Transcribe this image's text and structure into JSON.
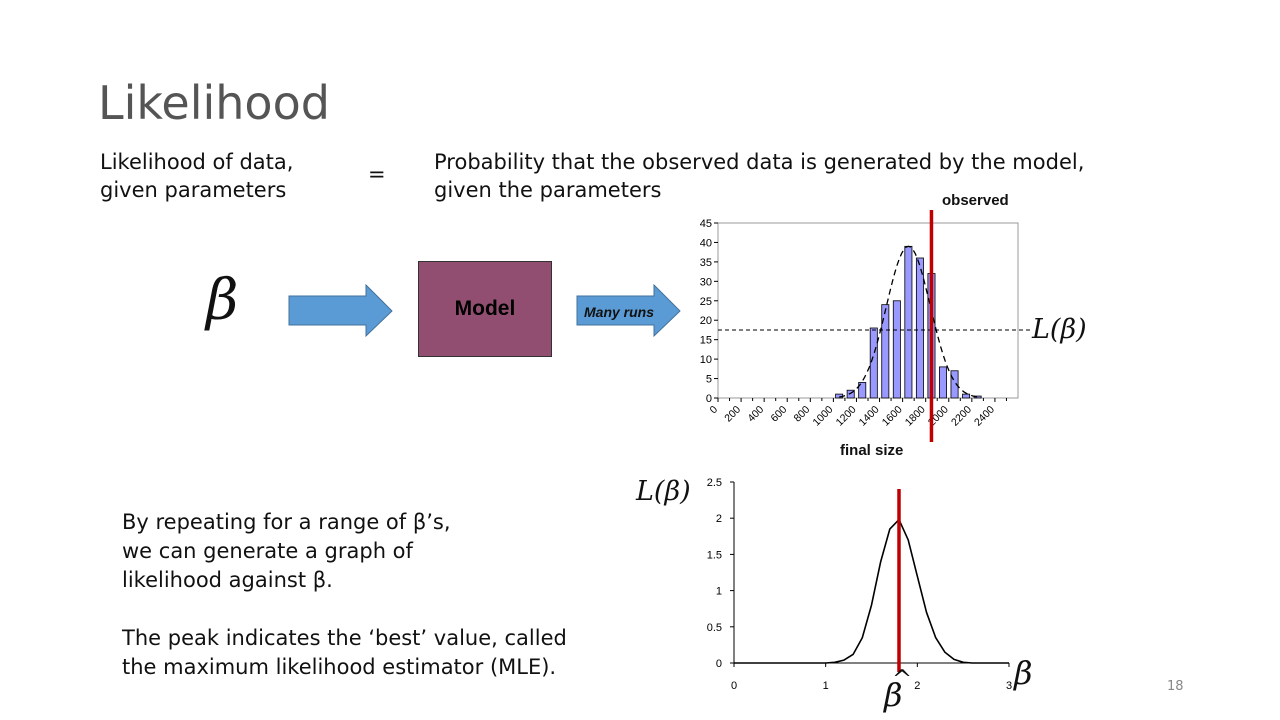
{
  "slide": {
    "title": "Likelihood",
    "definition_left": "Likelihood of data,\ngiven parameters",
    "equals": "=",
    "definition_right": "Probability that the observed data is generated by the model,\ngiven the parameters",
    "beta": "β",
    "model_label": "Model",
    "arrow_label": "Many runs",
    "observed_label": "observed",
    "L_beta": "L(β)",
    "beta_hat": "β",
    "hat": "^",
    "explanation_1": "By repeating for a range of β’s,\nwe can generate a graph of\nlikelihood against β.",
    "explanation_2": "The peak indicates the ‘best’ value, called\nthe maximum likelihood estimator (MLE).",
    "slide_number": "18",
    "colors": {
      "arrow_fill": "#5b9bd5",
      "model_fill": "#924e70",
      "bar_fill": "#9999ff",
      "marker": "#c00000"
    }
  },
  "chart_data": [
    {
      "type": "bar",
      "xlabel": "final size",
      "ylabel": "",
      "x_ticks": [
        "0",
        "200",
        "400",
        "600",
        "800",
        "1000",
        "1200",
        "1400",
        "1600",
        "1800",
        "2000",
        "2200",
        "2400"
      ],
      "y_ticks": [
        "0",
        "5",
        "10",
        "15",
        "20",
        "25",
        "30",
        "35",
        "40",
        "45"
      ],
      "ylim": [
        0,
        45
      ],
      "xlim": [
        0,
        2600
      ],
      "bin_width": 100,
      "x": [
        1000,
        1100,
        1200,
        1300,
        1400,
        1500,
        1600,
        1700,
        1800,
        1900,
        2000,
        2100,
        2200
      ],
      "values": [
        1,
        2,
        4,
        18,
        24,
        25,
        39,
        36,
        32,
        8,
        7,
        1,
        0.5
      ],
      "fit_curve": {
        "mean": 1600,
        "peak": 39,
        "sd": 190
      },
      "observed_x": 1850,
      "likelihood_level": 17.5
    },
    {
      "type": "line",
      "xlabel": "",
      "ylabel": "",
      "x_ticks": [
        "0",
        "1",
        "2",
        "3"
      ],
      "y_ticks": [
        "0",
        "0.5",
        "1",
        "1.5",
        "2",
        "2.5"
      ],
      "xlim": [
        0,
        3
      ],
      "ylim": [
        0,
        2.5
      ],
      "x": [
        0,
        0.5,
        1.0,
        1.1,
        1.2,
        1.3,
        1.4,
        1.5,
        1.6,
        1.7,
        1.8,
        1.9,
        2.0,
        2.1,
        2.2,
        2.3,
        2.4,
        2.5,
        2.6,
        3.0
      ],
      "values": [
        0,
        0,
        0,
        0.01,
        0.04,
        0.12,
        0.35,
        0.8,
        1.4,
        1.85,
        1.98,
        1.7,
        1.2,
        0.7,
        0.35,
        0.15,
        0.05,
        0.01,
        0,
        0
      ],
      "mle_x": 1.8
    }
  ]
}
